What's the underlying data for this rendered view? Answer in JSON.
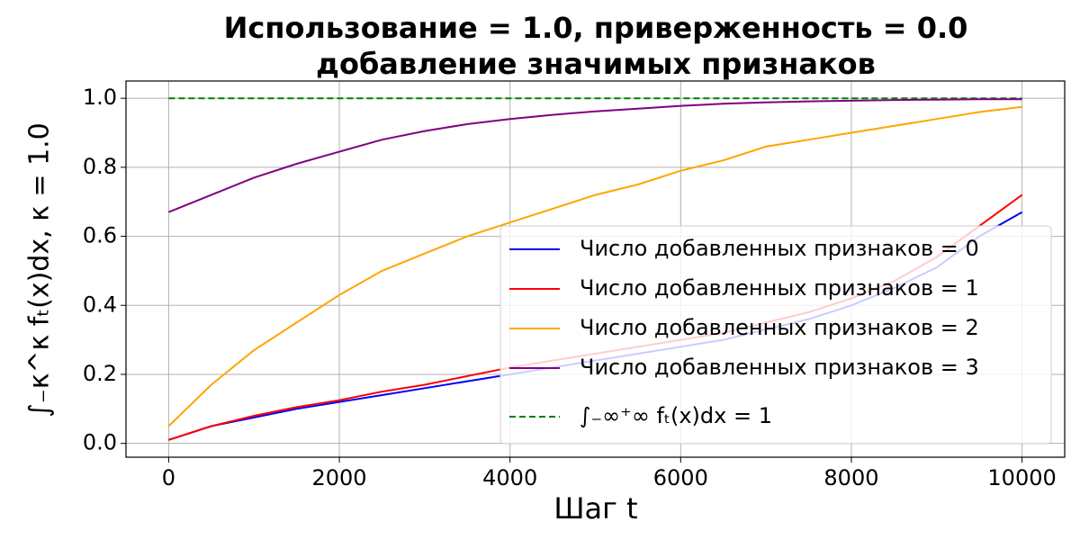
{
  "chart_data": {
    "type": "line",
    "title": [
      "Использование = 1.0, приверженность = 0.0",
      "добавление значимых признаков"
    ],
    "xlabel": "Шаг t",
    "ylabel": "∫₋κ^κ fₜ(x)dx, κ =  1.0",
    "x": [
      0,
      500,
      1000,
      1500,
      2000,
      2500,
      3000,
      3500,
      4000,
      4500,
      5000,
      5500,
      6000,
      6500,
      7000,
      7500,
      8000,
      8500,
      9000,
      9500,
      10000
    ],
    "series": [
      {
        "name": "Число добавленных признаков = 0",
        "color": "#0000ff",
        "values": [
          0.01,
          0.05,
          0.075,
          0.1,
          0.12,
          0.14,
          0.16,
          0.18,
          0.2,
          0.22,
          0.24,
          0.26,
          0.28,
          0.3,
          0.33,
          0.36,
          0.4,
          0.45,
          0.51,
          0.6,
          0.67
        ]
      },
      {
        "name": "Число добавленных признаков = 1",
        "color": "#ff0000",
        "values": [
          0.01,
          0.05,
          0.08,
          0.105,
          0.125,
          0.15,
          0.17,
          0.195,
          0.22,
          0.24,
          0.26,
          0.28,
          0.3,
          0.32,
          0.35,
          0.38,
          0.42,
          0.47,
          0.54,
          0.63,
          0.72
        ]
      },
      {
        "name": "Число добавленных признаков = 2",
        "color": "#ffa500",
        "values": [
          0.05,
          0.17,
          0.27,
          0.35,
          0.43,
          0.5,
          0.55,
          0.6,
          0.64,
          0.68,
          0.72,
          0.75,
          0.79,
          0.82,
          0.86,
          0.88,
          0.9,
          0.92,
          0.94,
          0.96,
          0.975
        ]
      },
      {
        "name": "Число добавленных признаков = 3",
        "color": "#800080",
        "values": [
          0.67,
          0.72,
          0.77,
          0.81,
          0.845,
          0.88,
          0.905,
          0.925,
          0.94,
          0.952,
          0.962,
          0.97,
          0.978,
          0.984,
          0.988,
          0.991,
          0.993,
          0.995,
          0.996,
          0.997,
          0.997
        ]
      }
    ],
    "reference": {
      "name": "∫₋∞⁺∞ fₜ(x)dx = 1",
      "color": "#008000",
      "dashed": true,
      "x": [
        0,
        10000
      ],
      "values": [
        1,
        1
      ]
    },
    "xlim": [
      -500,
      10500
    ],
    "ylim": [
      -0.04,
      1.05
    ],
    "xticks": [
      0,
      2000,
      4000,
      6000,
      8000,
      10000
    ],
    "yticks": [
      {
        "value": 0,
        "label": "0.0"
      },
      0.2,
      0.4,
      0.6,
      0.8,
      {
        "value": 1,
        "label": "1.0"
      }
    ],
    "grid": true,
    "legend": "lower right"
  }
}
